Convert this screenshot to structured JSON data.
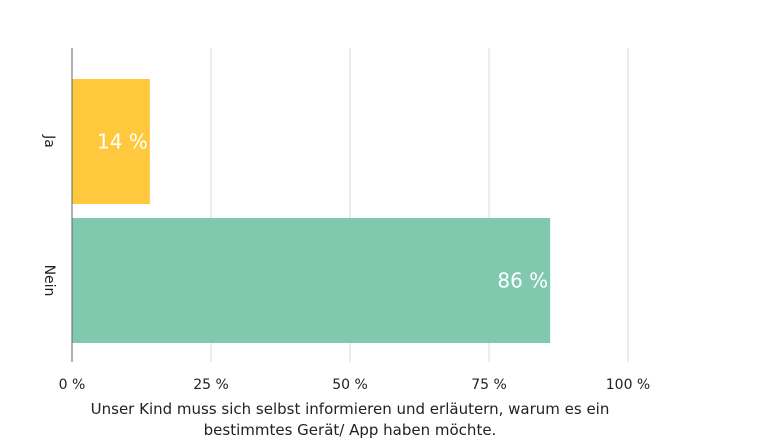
{
  "chart_data": {
    "type": "bar",
    "orientation": "horizontal",
    "categories": [
      "Ja",
      "Nein"
    ],
    "values": [
      14,
      86
    ],
    "data_labels": [
      "14 %",
      "86 %"
    ],
    "colors": [
      "#FFC83D",
      "#80C9AE"
    ],
    "xlim": [
      0,
      100
    ],
    "xticks": [
      0,
      25,
      50,
      75,
      100
    ],
    "xtick_labels": [
      "0 %",
      "25 %",
      "50 %",
      "75 %",
      "100 %"
    ],
    "xlabel": "Unser Kind muss sich selbst informieren und erläutern, warum es ein bestimmtes Gerät/ App haben möchte.",
    "xlabel_lines": [
      "Unser Kind muss sich selbst informieren und erläutern, warum es ein",
      "bestimmtes Gerät/ App haben möchte."
    ],
    "ylabel": "",
    "grid": "vertical",
    "legend": "none"
  }
}
